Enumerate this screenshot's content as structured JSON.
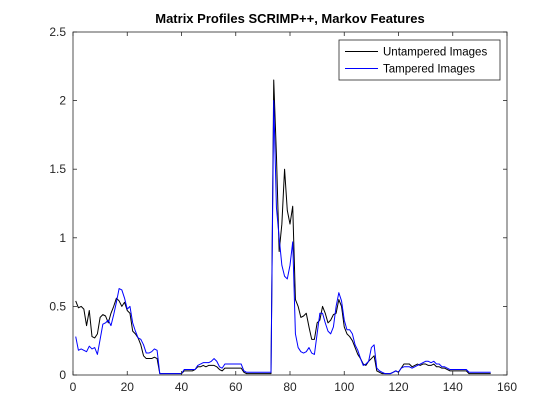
{
  "chart_data": {
    "type": "line",
    "title": "Matrix Profiles SCRIMP++, Markov Features",
    "xlabel": "",
    "ylabel": "",
    "xlim": [
      0,
      160
    ],
    "ylim": [
      0,
      2.5
    ],
    "xticks": [
      0,
      20,
      40,
      60,
      80,
      100,
      120,
      140,
      160
    ],
    "yticks": [
      0,
      0.5,
      1,
      1.5,
      2,
      2.5
    ],
    "x_tick_labels": [
      "0",
      "20",
      "40",
      "60",
      "80",
      "100",
      "120",
      "140",
      "160"
    ],
    "y_tick_labels": [
      "0",
      "0.5",
      "1",
      "1.5",
      "2",
      "2.5"
    ],
    "grid": false,
    "legend_position": "top-right",
    "x": [
      1,
      2,
      3,
      4,
      5,
      6,
      7,
      8,
      9,
      10,
      11,
      12,
      13,
      14,
      15,
      16,
      17,
      18,
      19,
      20,
      21,
      22,
      23,
      24,
      25,
      26,
      27,
      28,
      29,
      30,
      31,
      32,
      33,
      34,
      35,
      36,
      37,
      38,
      39,
      40,
      41,
      42,
      43,
      44,
      45,
      46,
      47,
      48,
      49,
      50,
      51,
      52,
      53,
      54,
      55,
      56,
      57,
      58,
      59,
      60,
      61,
      62,
      63,
      64,
      65,
      66,
      67,
      68,
      69,
      70,
      71,
      72,
      73,
      74,
      75,
      76,
      77,
      78,
      79,
      80,
      81,
      82,
      83,
      84,
      85,
      86,
      87,
      88,
      89,
      90,
      91,
      92,
      93,
      94,
      95,
      96,
      97,
      98,
      99,
      100,
      101,
      102,
      103,
      104,
      105,
      106,
      107,
      108,
      109,
      110,
      111,
      112,
      113,
      114,
      115,
      116,
      117,
      118,
      119,
      120,
      121,
      122,
      123,
      124,
      125,
      126,
      127,
      128,
      129,
      130,
      131,
      132,
      133,
      134,
      135,
      136,
      137,
      138,
      139,
      140,
      141,
      142,
      143,
      144,
      145,
      146,
      147,
      148,
      149,
      150,
      151,
      152,
      153,
      154
    ],
    "series": [
      {
        "name": "Untampered Images",
        "color": "#000000",
        "values": [
          0.54,
          0.49,
          0.5,
          0.48,
          0.36,
          0.47,
          0.28,
          0.27,
          0.3,
          0.42,
          0.44,
          0.43,
          0.38,
          0.45,
          0.5,
          0.56,
          0.54,
          0.5,
          0.53,
          0.47,
          0.45,
          0.32,
          0.3,
          0.27,
          0.22,
          0.14,
          0.12,
          0.12,
          0.12,
          0.13,
          0.12,
          0.01,
          0.01,
          0.01,
          0.01,
          0.01,
          0.01,
          0.01,
          0.01,
          0.01,
          0.03,
          0.03,
          0.03,
          0.03,
          0.04,
          0.06,
          0.06,
          0.07,
          0.06,
          0.07,
          0.07,
          0.07,
          0.06,
          0.04,
          0.03,
          0.05,
          0.05,
          0.05,
          0.05,
          0.05,
          0.05,
          0.05,
          0.02,
          0.01,
          0.01,
          0.01,
          0.01,
          0.01,
          0.01,
          0.01,
          0.01,
          0.01,
          0.01,
          2.15,
          1.6,
          0.9,
          1.1,
          1.5,
          1.2,
          1.1,
          1.23,
          0.55,
          0.5,
          0.42,
          0.43,
          0.45,
          0.35,
          0.26,
          0.26,
          0.38,
          0.4,
          0.5,
          0.45,
          0.38,
          0.4,
          0.44,
          0.45,
          0.55,
          0.5,
          0.35,
          0.3,
          0.28,
          0.25,
          0.2,
          0.15,
          0.12,
          0.08,
          0.07,
          0.1,
          0.12,
          0.14,
          0.03,
          0.02,
          0.01,
          0.01,
          0.01,
          0.01,
          0.02,
          0.03,
          0.02,
          0.05,
          0.08,
          0.08,
          0.08,
          0.06,
          0.07,
          0.08,
          0.07,
          0.08,
          0.08,
          0.07,
          0.07,
          0.08,
          0.06,
          0.06,
          0.05,
          0.05,
          0.04,
          0.03,
          0.03,
          0.03,
          0.03,
          0.03,
          0.03,
          0.03,
          0.01,
          0.01,
          0.01,
          0.01,
          0.01,
          0.01,
          0.01,
          0.01,
          0.01
        ]
      },
      {
        "name": "Tampered Images",
        "color": "#0000ff",
        "values": [
          0.28,
          0.18,
          0.19,
          0.18,
          0.17,
          0.21,
          0.19,
          0.2,
          0.15,
          0.26,
          0.37,
          0.38,
          0.4,
          0.36,
          0.44,
          0.53,
          0.63,
          0.62,
          0.56,
          0.48,
          0.5,
          0.38,
          0.32,
          0.27,
          0.26,
          0.22,
          0.16,
          0.16,
          0.17,
          0.19,
          0.18,
          0.01,
          0.01,
          0.01,
          0.01,
          0.01,
          0.01,
          0.01,
          0.01,
          0.01,
          0.04,
          0.04,
          0.04,
          0.04,
          0.04,
          0.07,
          0.08,
          0.09,
          0.09,
          0.09,
          0.1,
          0.12,
          0.1,
          0.06,
          0.05,
          0.08,
          0.08,
          0.08,
          0.08,
          0.08,
          0.08,
          0.08,
          0.03,
          0.02,
          0.02,
          0.02,
          0.02,
          0.02,
          0.02,
          0.02,
          0.02,
          0.02,
          0.02,
          2.0,
          1.22,
          1.0,
          0.8,
          0.72,
          0.7,
          0.8,
          0.97,
          0.3,
          0.2,
          0.17,
          0.16,
          0.17,
          0.2,
          0.16,
          0.15,
          0.3,
          0.45,
          0.45,
          0.38,
          0.32,
          0.3,
          0.35,
          0.5,
          0.6,
          0.54,
          0.4,
          0.33,
          0.33,
          0.3,
          0.22,
          0.18,
          0.12,
          0.07,
          0.08,
          0.1,
          0.2,
          0.22,
          0.05,
          0.03,
          0.02,
          0.01,
          0.01,
          0.01,
          0.02,
          0.03,
          0.02,
          0.05,
          0.06,
          0.06,
          0.06,
          0.05,
          0.06,
          0.07,
          0.08,
          0.09,
          0.1,
          0.1,
          0.09,
          0.1,
          0.08,
          0.08,
          0.06,
          0.06,
          0.05,
          0.04,
          0.04,
          0.04,
          0.04,
          0.04,
          0.04,
          0.04,
          0.02,
          0.02,
          0.02,
          0.02,
          0.02,
          0.02,
          0.02,
          0.02,
          0.02
        ]
      }
    ]
  }
}
